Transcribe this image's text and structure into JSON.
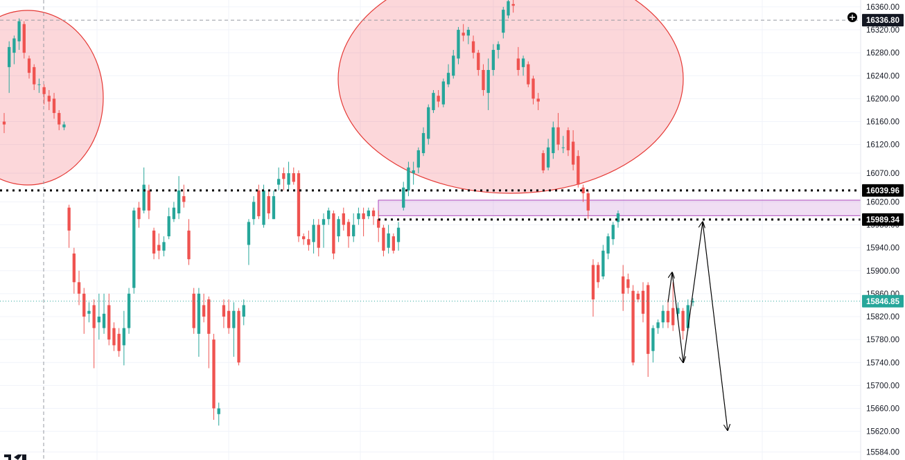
{
  "chart_data": {
    "type": "candlestick",
    "title": "",
    "ylim": [
      15570,
      16372
    ],
    "colors": {
      "up": "#26a69a",
      "down": "#ef5350",
      "background": "#ffffff",
      "grid": "#f0f3fa"
    },
    "y_ticks": [
      "16360.00",
      "16320.00",
      "16280.00",
      "16240.00",
      "16200.00",
      "16160.00",
      "16120.00",
      "16070.00",
      "16020.00",
      "15980.00",
      "15940.00",
      "15900.00",
      "15860.00",
      "15820.00",
      "15780.00",
      "15740.00",
      "15700.00",
      "15660.00",
      "15620.00",
      "15584.00"
    ],
    "y_tick_values": [
      16360,
      16320,
      16280,
      16240,
      16200,
      16160,
      16120,
      16070,
      16020,
      15980,
      15940,
      15900,
      15860,
      15820,
      15780,
      15740,
      15700,
      15660,
      15620,
      15584
    ],
    "price_labels": [
      {
        "value": 16336.8,
        "text": "16336.80",
        "style": "crosshair"
      },
      {
        "value": 16039.96,
        "text": "16039.96",
        "style": "level"
      },
      {
        "value": 15989.34,
        "text": "15989.34",
        "style": "level"
      },
      {
        "value": 15846.85,
        "text": "15846.85",
        "style": "last"
      }
    ],
    "levels": [
      16039.96,
      15989.34
    ],
    "last_price": 15846.85,
    "crosshair_price": 16336.8,
    "zone": {
      "top": 16023,
      "bottom": 15996
    },
    "candles": [
      [
        16160,
        16155,
        16175,
        16140
      ],
      [
        16255,
        16290,
        16300,
        16210
      ],
      [
        16280,
        16305,
        16310,
        16260
      ],
      [
        16300,
        16335,
        16340,
        16285
      ],
      [
        16330,
        16280,
        16335,
        16270
      ],
      [
        16270,
        16245,
        16275,
        16235
      ],
      [
        16255,
        16225,
        16260,
        16215
      ],
      [
        16225,
        16225,
        16235,
        16210
      ],
      [
        16220,
        16208,
        16225,
        16190
      ],
      [
        16205,
        16195,
        16215,
        16180
      ],
      [
        16200,
        16175,
        16210,
        16165
      ],
      [
        16175,
        16155,
        16180,
        16145
      ],
      [
        16150,
        16155,
        16160,
        16145
      ],
      [
        16010,
        15970,
        16015,
        15940
      ],
      [
        15930,
        15880,
        15940,
        15860
      ],
      [
        15880,
        15860,
        15900,
        15840
      ],
      [
        15860,
        15820,
        15870,
        15790
      ],
      [
        15825,
        15830,
        15845,
        15810
      ],
      [
        15840,
        15800,
        15850,
        15730
      ],
      [
        15810,
        15820,
        15860,
        15780
      ],
      [
        15800,
        15825,
        15860,
        15790
      ],
      [
        15840,
        15780,
        15860,
        15770
      ],
      [
        15800,
        15770,
        15810,
        15760
      ],
      [
        15790,
        15760,
        15800,
        15750
      ],
      [
        15770,
        15800,
        15830,
        15735
      ],
      [
        15800,
        15860,
        15870,
        15790
      ],
      [
        15870,
        16005,
        16010,
        15860
      ],
      [
        16010,
        15990,
        16020,
        15975
      ],
      [
        16005,
        16050,
        16080,
        16000
      ],
      [
        16040,
        16005,
        16050,
        15990
      ],
      [
        15970,
        15930,
        15975,
        15920
      ],
      [
        15945,
        15935,
        15965,
        15920
      ],
      [
        15935,
        15950,
        15960,
        15925
      ],
      [
        15960,
        15995,
        16010,
        15955
      ],
      [
        15990,
        16010,
        16020,
        15985
      ],
      [
        16000,
        16040,
        16065,
        15990
      ],
      [
        16030,
        16020,
        16050,
        16010
      ],
      [
        15970,
        15920,
        15990,
        15910
      ],
      [
        15860,
        15800,
        15870,
        15790
      ],
      [
        15790,
        15860,
        15870,
        15750
      ],
      [
        15840,
        15820,
        15860,
        15810
      ],
      [
        15850,
        15790,
        15855,
        15730
      ],
      [
        15780,
        15660,
        15790,
        15640
      ],
      [
        15650,
        15660,
        15670,
        15630
      ],
      [
        15840,
        15820,
        15850,
        15800
      ],
      [
        15830,
        15800,
        15850,
        15790
      ],
      [
        15800,
        15830,
        15845,
        15750
      ],
      [
        15830,
        15740,
        15835,
        15735
      ],
      [
        15820,
        15840,
        15850,
        15805
      ],
      [
        15945,
        15985,
        15990,
        15910
      ],
      [
        15990,
        16020,
        16030,
        15980
      ],
      [
        16040,
        15995,
        16050,
        15990
      ],
      [
        15980,
        16040,
        16050,
        15975
      ],
      [
        16030,
        16000,
        16040,
        15990
      ],
      [
        15990,
        16030,
        16040,
        15990
      ],
      [
        16050,
        16060,
        16080,
        16040
      ],
      [
        16070,
        16060,
        16080,
        16040
      ],
      [
        16050,
        16070,
        16090,
        16040
      ],
      [
        16070,
        16055,
        16080,
        16050
      ],
      [
        16070,
        15960,
        16075,
        15950
      ],
      [
        15960,
        15955,
        15965,
        15945
      ],
      [
        15955,
        15945,
        15970,
        15935
      ],
      [
        15950,
        15980,
        15990,
        15930
      ],
      [
        15980,
        15940,
        15990,
        15925
      ],
      [
        15980,
        15990,
        16000,
        15940
      ],
      [
        15990,
        16005,
        16010,
        15980
      ],
      [
        16000,
        15930,
        16005,
        15920
      ],
      [
        15960,
        15990,
        15995,
        15950
      ],
      [
        16000,
        15980,
        16010,
        15970
      ],
      [
        15985,
        15960,
        15990,
        15940
      ],
      [
        15960,
        15980,
        16000,
        15950
      ],
      [
        15990,
        16000,
        16010,
        15980
      ],
      [
        16000,
        15990,
        16010,
        15960
      ],
      [
        15995,
        16005,
        16010,
        15990
      ],
      [
        16005,
        15995,
        16010,
        15980
      ],
      [
        15990,
        15975,
        16005,
        15950
      ],
      [
        15975,
        15935,
        15980,
        15925
      ],
      [
        15940,
        15965,
        15980,
        15930
      ],
      [
        15960,
        15935,
        15965,
        15930
      ],
      [
        15950,
        15975,
        15985,
        15935
      ],
      [
        16010,
        16045,
        16055,
        16005
      ],
      [
        16040,
        16080,
        16090,
        16030
      ],
      [
        16070,
        16075,
        16090,
        16050
      ],
      [
        16080,
        16110,
        16115,
        16070
      ],
      [
        16105,
        16140,
        16150,
        16100
      ],
      [
        16130,
        16185,
        16190,
        16120
      ],
      [
        16180,
        16210,
        16215,
        16175
      ],
      [
        16205,
        16195,
        16215,
        16185
      ],
      [
        16190,
        16230,
        16235,
        16185
      ],
      [
        16225,
        16245,
        16260,
        16220
      ],
      [
        16240,
        16275,
        16285,
        16235
      ],
      [
        16270,
        16320,
        16325,
        16260
      ],
      [
        16315,
        16310,
        16330,
        16300
      ],
      [
        16310,
        16320,
        16325,
        16295
      ],
      [
        16300,
        16280,
        16310,
        16270
      ],
      [
        16280,
        16250,
        16285,
        16240
      ],
      [
        16250,
        16215,
        16260,
        16205
      ],
      [
        16210,
        16250,
        16270,
        16180
      ],
      [
        16250,
        16285,
        16295,
        16240
      ],
      [
        16285,
        16295,
        16300,
        16270
      ],
      [
        16315,
        16355,
        16360,
        16305
      ],
      [
        16345,
        16370,
        16380,
        16340
      ],
      [
        16365,
        16362,
        16372,
        16350
      ],
      [
        16270,
        16250,
        16290,
        16240
      ],
      [
        16255,
        16270,
        16275,
        16240
      ],
      [
        16260,
        16225,
        16265,
        16220
      ],
      [
        16235,
        16200,
        16240,
        16190
      ],
      [
        16200,
        16195,
        16210,
        16180
      ],
      [
        16105,
        16075,
        16110,
        16070
      ],
      [
        16080,
        16115,
        16130,
        16075
      ],
      [
        16105,
        16150,
        16160,
        16095
      ],
      [
        16150,
        16120,
        16175,
        16110
      ],
      [
        16115,
        16115,
        16135,
        16105
      ],
      [
        16145,
        16110,
        16150,
        16100
      ],
      [
        16125,
        16085,
        16145,
        16075
      ],
      [
        16100,
        16050,
        16110,
        16045
      ],
      [
        16045,
        16035,
        16050,
        16020
      ],
      [
        16035,
        16005,
        16040,
        15990
      ],
      [
        15910,
        15850,
        15920,
        15820
      ],
      [
        15910,
        15880,
        15915,
        15870
      ],
      [
        15890,
        15935,
        15945,
        15885
      ],
      [
        15930,
        15960,
        15965,
        15920
      ],
      [
        15955,
        15980,
        15985,
        15945
      ],
      [
        15985,
        16000,
        16005,
        15975
      ],
      [
        15890,
        15860,
        15910,
        15830
      ],
      [
        15885,
        15870,
        15895,
        15860
      ],
      [
        15865,
        15740,
        15875,
        15735
      ],
      [
        15860,
        15850,
        15865,
        15845
      ],
      [
        15865,
        15825,
        15880,
        15810
      ],
      [
        15875,
        15755,
        15880,
        15715
      ],
      [
        15760,
        15800,
        15805,
        15740
      ],
      [
        15800,
        15810,
        15815,
        15790
      ],
      [
        15810,
        15830,
        15840,
        15800
      ],
      [
        15830,
        15810,
        15850,
        15800
      ],
      [
        15835,
        15805,
        15880,
        15795
      ],
      [
        15825,
        15835,
        15845,
        15815
      ],
      [
        15830,
        15795,
        15835,
        15780
      ],
      [
        15800,
        15840,
        15850,
        15795
      ],
      [
        15845,
        15847,
        15852,
        15838
      ]
    ],
    "pattern_path": [
      [
        964,
        15845
      ],
      [
        970,
        15897
      ],
      [
        986,
        15740
      ],
      [
        1014,
        15985
      ],
      [
        1050,
        15622
      ]
    ]
  }
}
